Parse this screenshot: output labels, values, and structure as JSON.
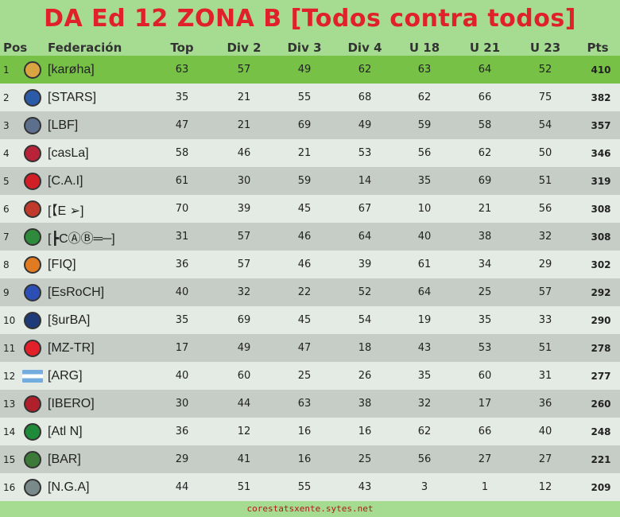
{
  "title": "DA Ed 12 ZONA B  [Todos contra todos]",
  "headers": {
    "pos": "Pos",
    "fed": "Federación",
    "top": "Top",
    "div2": "Div 2",
    "div3": "Div 3",
    "div4": "Div 4",
    "u18": "U 18",
    "u21": "U 21",
    "u23": "U 23",
    "pts": "Pts"
  },
  "rows": [
    {
      "pos": "1",
      "fed": "[karøha]",
      "top": "63",
      "div2": "57",
      "div3": "49",
      "div4": "62",
      "u18": "63",
      "u21": "64",
      "u23": "52",
      "pts": "410",
      "crest": "#d9a441",
      "icon": "pixel-character-icon"
    },
    {
      "pos": "2",
      "fed": "[STARS]",
      "top": "35",
      "div2": "21",
      "div3": "55",
      "div4": "68",
      "u18": "62",
      "u21": "66",
      "u23": "75",
      "pts": "382",
      "crest": "#2b5aa8",
      "icon": "star-crest-icon"
    },
    {
      "pos": "3",
      "fed": "[LBF]",
      "top": "47",
      "div2": "21",
      "div3": "69",
      "div4": "49",
      "u18": "59",
      "u21": "58",
      "u23": "54",
      "pts": "357",
      "crest": "#5c6f8c",
      "icon": "shield-crest-icon"
    },
    {
      "pos": "4",
      "fed": "[casLa]",
      "top": "58",
      "div2": "46",
      "div3": "21",
      "div4": "53",
      "u18": "56",
      "u21": "62",
      "u23": "50",
      "pts": "346",
      "crest": "#b8233a",
      "icon": "san-lorenzo-crest-icon"
    },
    {
      "pos": "5",
      "fed": "[C.A.I]",
      "top": "61",
      "div2": "30",
      "div3": "59",
      "div4": "14",
      "u18": "35",
      "u21": "69",
      "u23": "51",
      "pts": "319",
      "crest": "#d11f28",
      "icon": "independiente-crest-icon"
    },
    {
      "pos": "6",
      "fed": "[【E ➢]",
      "top": "70",
      "div2": "39",
      "div3": "45",
      "div4": "67",
      "u18": "10",
      "u21": "21",
      "u23": "56",
      "pts": "308",
      "crest": "#c0392b",
      "icon": "striped-crest-icon"
    },
    {
      "pos": "7",
      "fed": "[┣CⒶⒷ═─]",
      "top": "31",
      "div2": "57",
      "div3": "46",
      "div4": "64",
      "u18": "40",
      "u21": "38",
      "u23": "32",
      "pts": "308",
      "crest": "#2e8b3c",
      "icon": "banfield-crest-icon"
    },
    {
      "pos": "8",
      "fed": "[FIQ]",
      "top": "36",
      "div2": "57",
      "div3": "46",
      "div4": "39",
      "u18": "61",
      "u21": "34",
      "u23": "29",
      "pts": "302",
      "crest": "#e07b22",
      "icon": "crown-crest-icon"
    },
    {
      "pos": "9",
      "fed": "[EsRoCH]",
      "top": "40",
      "div2": "32",
      "div3": "22",
      "div4": "52",
      "u18": "64",
      "u21": "25",
      "u23": "57",
      "pts": "292",
      "crest": "#2c4fb5",
      "icon": "chile-crest-icon"
    },
    {
      "pos": "10",
      "fed": "[§urBA]",
      "top": "35",
      "div2": "69",
      "div3": "45",
      "div4": "54",
      "u18": "19",
      "u21": "35",
      "u23": "33",
      "pts": "290",
      "crest": "#1e3a78",
      "icon": "round-badge-icon"
    },
    {
      "pos": "11",
      "fed": "[MZ-TR]",
      "top": "17",
      "div2": "49",
      "div3": "47",
      "div4": "18",
      "u18": "43",
      "u21": "53",
      "u23": "51",
      "pts": "278",
      "crest": "#e2202a",
      "icon": "turkey-crest-icon"
    },
    {
      "pos": "12",
      "fed": "[ARG]",
      "top": "40",
      "div2": "60",
      "div3": "25",
      "div4": "26",
      "u18": "35",
      "u21": "60",
      "u23": "31",
      "pts": "277",
      "crest": "flag",
      "icon": "argentina-flag-icon"
    },
    {
      "pos": "13",
      "fed": "[IBERO]",
      "top": "30",
      "div2": "44",
      "div3": "63",
      "div4": "38",
      "u18": "32",
      "u21": "17",
      "u23": "36",
      "pts": "260",
      "crest": "#b0202a",
      "icon": "bull-crest-icon"
    },
    {
      "pos": "14",
      "fed": "[Atl N]",
      "top": "36",
      "div2": "12",
      "div3": "16",
      "div4": "16",
      "u18": "62",
      "u21": "66",
      "u23": "40",
      "pts": "248",
      "crest": "#1f8a3a",
      "icon": "nacional-crest-icon"
    },
    {
      "pos": "15",
      "fed": "[BAR]",
      "top": "29",
      "div2": "41",
      "div3": "16",
      "div4": "25",
      "u18": "56",
      "u21": "27",
      "u23": "27",
      "pts": "221",
      "crest": "#3c7a3a",
      "icon": "dragon-crest-icon"
    },
    {
      "pos": "16",
      "fed": "[N.G.A]",
      "top": "44",
      "div2": "51",
      "div3": "55",
      "div4": "43",
      "u18": "3",
      "u21": "1",
      "u23": "12",
      "pts": "209",
      "crest": "#7a8a8a",
      "icon": "winged-crest-icon"
    }
  ],
  "footer": "corestatsxente.sytes.net",
  "colors": {
    "title": "#e0202a",
    "leader_row": "#76c146",
    "row_odd": "#c6cdc6",
    "row_even": "#e4eae4",
    "background": "#a6dc92"
  }
}
